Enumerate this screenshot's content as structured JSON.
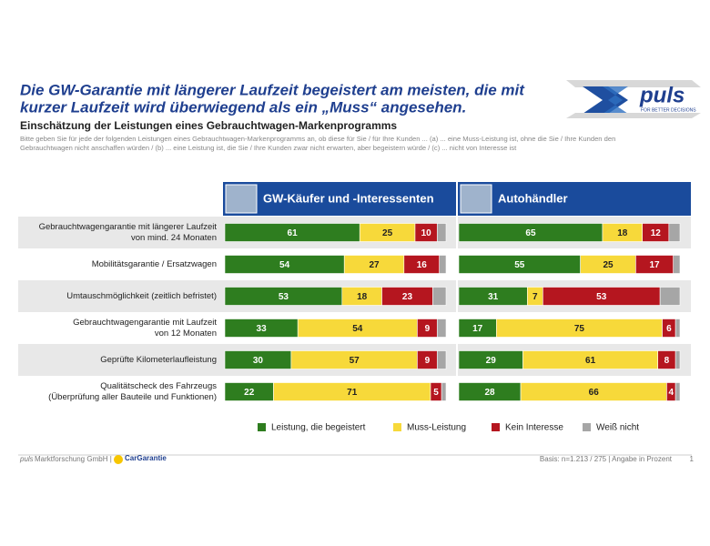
{
  "header": {
    "title": [
      "Die GW-Garantie mit längerer Laufzeit begeistert am meisten, die mit",
      "kurzer Laufzeit wird überwiegend als ein „Muss“ angesehen."
    ],
    "subtitle": "Einschätzung der Leistungen eines Gebrauchtwagen-Markenprogramms",
    "description": [
      "Bitte geben Sie für jede der folgenden Leistungen eines Gebrauchtwagen-Markenprogramms an, ob diese für Sie / für Ihre Kunden ... (a) ... eine Muss-Leistung ist, ohne die Sie / Ihre Kunden den",
      "Gebrauchtwagen nicht anschaffen würden / (b) ... eine Leistung ist, die Sie / Ihre Kunden zwar nicht erwarten, aber begeistern würde / (c) ... nicht von Interesse ist"
    ],
    "logo": "puls",
    "logo_tagline": "FOR BETTER DECISIONS"
  },
  "chart_data": [
    {
      "type": "bar",
      "orientation": "horizontal",
      "stacked": true,
      "title": "GW-Käufer und -Interessenten",
      "xlim": [
        0,
        100
      ],
      "categories": [
        [
          "Gebrauchtwagengarantie mit längerer Laufzeit",
          "von mind. 24 Monaten"
        ],
        [
          "Mobilitätsgarantie / Ersatzwagen"
        ],
        [
          "Umtauschmöglichkeit (zeitlich befristet)"
        ],
        [
          "Gebrauchtwagengarantie mit Laufzeit",
          "von 12 Monaten"
        ],
        [
          "Geprüfte Kilometerlaufleistung"
        ],
        [
          "Qualitätscheck des Fahrzeugs",
          "(Überprüfung aller Bauteile und Funktionen)"
        ]
      ],
      "series": [
        {
          "name": "Leistung, die begeistert",
          "color": "#2e7d1f",
          "values": [
            61,
            54,
            53,
            33,
            30,
            22
          ]
        },
        {
          "name": "Muss-Leistung",
          "color": "#f7d93a",
          "values": [
            25,
            27,
            18,
            54,
            57,
            71
          ]
        },
        {
          "name": "Kein Interesse",
          "color": "#b5161f",
          "values": [
            10,
            16,
            23,
            9,
            9,
            5
          ]
        },
        {
          "name": "Weiß nicht",
          "color": "#a6a6a6",
          "values": [
            4,
            3,
            6,
            4,
            4,
            2
          ]
        }
      ]
    },
    {
      "type": "bar",
      "orientation": "horizontal",
      "stacked": true,
      "title": "Autohändler",
      "xlim": [
        0,
        100
      ],
      "series": [
        {
          "values": [
            65,
            55,
            31,
            17,
            29,
            28
          ]
        },
        {
          "values": [
            18,
            25,
            7,
            75,
            61,
            66
          ]
        },
        {
          "values": [
            12,
            17,
            53,
            6,
            8,
            4
          ]
        },
        {
          "values": [
            5,
            3,
            9,
            2,
            2,
            2
          ]
        }
      ]
    }
  ],
  "footer": {
    "company_brand": "puls",
    "company": "Marktforschung GmbH |",
    "partner": "CarGarantie",
    "basis": "Basis: n=1.213 / 275 | Angabe in Prozent",
    "page": "1"
  }
}
